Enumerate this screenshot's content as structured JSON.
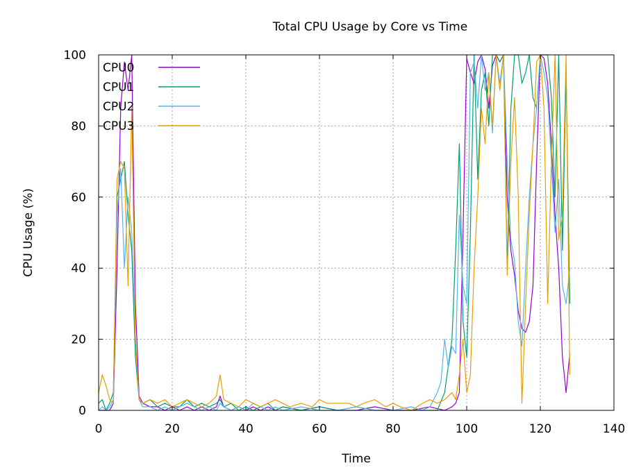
{
  "chart_data": {
    "type": "line",
    "title": "Total CPU Usage by Core vs Time",
    "xlabel": "Time",
    "ylabel": "CPU Usage (%)",
    "xlim": [
      0,
      140
    ],
    "ylim": [
      0,
      100
    ],
    "xticks": [
      0,
      20,
      40,
      60,
      80,
      100,
      120,
      140
    ],
    "yticks": [
      0,
      20,
      40,
      60,
      80,
      100
    ],
    "grid": true,
    "legend_position": "top-left",
    "series": [
      {
        "name": "CPU0",
        "color": "#9400d3",
        "x": [
          0,
          1,
          2,
          3,
          4,
          5,
          6,
          7,
          8,
          9,
          10,
          11,
          12,
          14,
          16,
          18,
          20,
          22,
          24,
          26,
          28,
          30,
          32,
          33,
          34,
          36,
          38,
          40,
          42,
          44,
          46,
          48,
          50,
          55,
          60,
          65,
          70,
          75,
          80,
          85,
          90,
          94,
          96,
          97,
          98,
          99,
          100,
          101,
          102,
          103,
          104,
          105,
          106,
          107,
          108,
          109,
          110,
          111,
          112,
          113,
          114,
          115,
          116,
          117,
          118,
          119,
          120,
          121,
          122,
          123,
          124,
          125,
          126,
          127,
          128
        ],
        "values": [
          0,
          0,
          0,
          0,
          2,
          40,
          85,
          98,
          90,
          100,
          30,
          4,
          2,
          1,
          1,
          0,
          1,
          0,
          1,
          0,
          1,
          0,
          1,
          4,
          1,
          0,
          1,
          0,
          1,
          0,
          1,
          0,
          1,
          0,
          1,
          0,
          0,
          1,
          0,
          0,
          1,
          0,
          1,
          2,
          5,
          50,
          99,
          95,
          92,
          98,
          100,
          96,
          85,
          97,
          100,
          98,
          100,
          60,
          45,
          38,
          28,
          23,
          22,
          25,
          35,
          70,
          100,
          99,
          92,
          75,
          55,
          40,
          15,
          5,
          16
        ]
      },
      {
        "name": "CPU1",
        "color": "#009e73",
        "x": [
          0,
          1,
          2,
          3,
          4,
          5,
          6,
          7,
          8,
          9,
          10,
          11,
          12,
          14,
          16,
          18,
          20,
          22,
          24,
          26,
          28,
          30,
          32,
          33,
          34,
          36,
          38,
          40,
          42,
          44,
          46,
          48,
          50,
          55,
          60,
          65,
          70,
          75,
          80,
          85,
          90,
          92,
          94,
          96,
          97,
          98,
          99,
          100,
          101,
          102,
          103,
          104,
          105,
          106,
          107,
          108,
          109,
          110,
          111,
          112,
          113,
          114,
          115,
          116,
          117,
          118,
          119,
          120,
          121,
          122,
          123,
          124,
          125,
          126,
          127,
          128
        ],
        "values": [
          2,
          3,
          0,
          2,
          5,
          60,
          65,
          70,
          55,
          45,
          15,
          3,
          2,
          3,
          1,
          2,
          1,
          1,
          3,
          1,
          2,
          1,
          2,
          3,
          1,
          2,
          0,
          1,
          0,
          1,
          2,
          0,
          1,
          0,
          1,
          0,
          1,
          0,
          0,
          0,
          0,
          0,
          5,
          20,
          45,
          75,
          25,
          15,
          50,
          100,
          65,
          90,
          95,
          80,
          100,
          100,
          98,
          100,
          40,
          85,
          100,
          100,
          92,
          95,
          100,
          88,
          85,
          100,
          100,
          100,
          88,
          60,
          100,
          45,
          95,
          30
        ]
      },
      {
        "name": "CPU2",
        "color": "#56b4e9",
        "x": [
          0,
          1,
          2,
          3,
          4,
          5,
          6,
          7,
          8,
          9,
          10,
          11,
          12,
          14,
          16,
          18,
          20,
          22,
          24,
          26,
          28,
          30,
          32,
          33,
          34,
          36,
          38,
          40,
          42,
          44,
          46,
          48,
          50,
          55,
          60,
          65,
          70,
          75,
          80,
          85,
          88,
          90,
          92,
          93,
          94,
          95,
          96,
          97,
          98,
          99,
          100,
          101,
          102,
          103,
          104,
          105,
          106,
          107,
          108,
          109,
          110,
          111,
          112,
          113,
          114,
          115,
          116,
          117,
          118,
          119,
          120,
          121,
          122,
          123,
          124,
          125,
          126,
          127,
          128
        ],
        "values": [
          0,
          1,
          0,
          1,
          3,
          55,
          68,
          40,
          60,
          50,
          20,
          3,
          1,
          1,
          0,
          1,
          0,
          1,
          2,
          1,
          0,
          1,
          0,
          2,
          1,
          0,
          1,
          0,
          2,
          1,
          0,
          1,
          0,
          1,
          0,
          0,
          1,
          0,
          0,
          1,
          0,
          1,
          5,
          8,
          20,
          12,
          18,
          16,
          55,
          35,
          30,
          95,
          98,
          85,
          100,
          90,
          95,
          78,
          100,
          92,
          100,
          70,
          48,
          42,
          25,
          18,
          40,
          60,
          75,
          85,
          100,
          95,
          88,
          70,
          50,
          65,
          35,
          30,
          40
        ]
      },
      {
        "name": "CPU3",
        "color": "#e69f00",
        "x": [
          0,
          1,
          2,
          3,
          4,
          5,
          6,
          7,
          8,
          9,
          10,
          11,
          12,
          14,
          16,
          18,
          20,
          22,
          24,
          26,
          28,
          30,
          32,
          33,
          34,
          36,
          38,
          40,
          42,
          44,
          46,
          48,
          50,
          52,
          55,
          58,
          60,
          62,
          65,
          68,
          70,
          72,
          75,
          78,
          80,
          82,
          85,
          88,
          90,
          92,
          94,
          96,
          97,
          98,
          99,
          100,
          101,
          102,
          103,
          104,
          105,
          106,
          107,
          108,
          109,
          110,
          111,
          112,
          113,
          114,
          115,
          116,
          117,
          118,
          119,
          120,
          121,
          122,
          123,
          124,
          125,
          126,
          127,
          128
        ],
        "values": [
          5,
          10,
          7,
          3,
          2,
          65,
          70,
          68,
          35,
          85,
          20,
          3,
          2,
          3,
          2,
          3,
          1,
          2,
          3,
          2,
          1,
          2,
          4,
          10,
          3,
          2,
          1,
          3,
          2,
          1,
          2,
          3,
          2,
          1,
          2,
          1,
          3,
          2,
          2,
          2,
          1,
          2,
          3,
          1,
          2,
          1,
          0,
          2,
          3,
          2,
          3,
          5,
          3,
          10,
          20,
          5,
          10,
          40,
          60,
          85,
          75,
          95,
          80,
          100,
          90,
          100,
          38,
          70,
          88,
          60,
          2,
          30,
          55,
          75,
          98,
          100,
          85,
          30,
          70,
          100,
          48,
          55,
          100,
          10
        ]
      }
    ]
  }
}
